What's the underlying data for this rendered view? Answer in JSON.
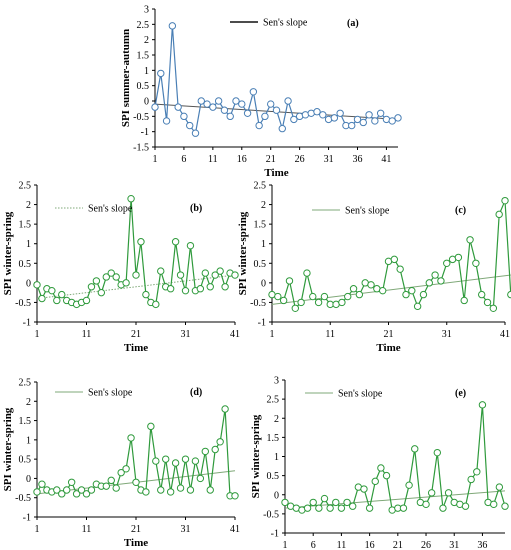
{
  "style": {
    "blue": "#4a7fb5",
    "green": "#2f9a3c",
    "trend_a": "#555555",
    "trend": "#7fa878",
    "axis": "#000000"
  },
  "chart_data": [
    {
      "id": "a",
      "type": "line",
      "panel_label": "(a)",
      "xlabel": "Time",
      "ylabel": "SPI summer-autumn",
      "legend": "Sen's slope",
      "legend_position": "top-center",
      "legend_line": "solid",
      "xlim": [
        1,
        43
      ],
      "ylim": [
        -1.5,
        3
      ],
      "xticks": [
        1,
        6,
        11,
        16,
        21,
        26,
        31,
        36,
        41
      ],
      "yticks": [
        -1.5,
        -1,
        -0.5,
        0,
        0.5,
        1,
        1.5,
        2,
        2.5,
        3
      ],
      "ytick_labels": [
        "-1.5",
        "-1",
        "-0.5",
        "0",
        "0.5",
        "1",
        "1.5",
        "2",
        "2.5",
        "3"
      ],
      "grid": false,
      "color_key": "blue",
      "series": [
        {
          "x": [
            1,
            2,
            3,
            4,
            5,
            6,
            7,
            8,
            9,
            10,
            11,
            12,
            13,
            14,
            15,
            16,
            17,
            18,
            19,
            20,
            21,
            22,
            23,
            24,
            25,
            26,
            27,
            28,
            29,
            30,
            31,
            32,
            33,
            34,
            35,
            36,
            37,
            38,
            39,
            40,
            41,
            42,
            43
          ],
          "values": [
            -0.2,
            0.9,
            -0.65,
            2.45,
            -0.2,
            -0.5,
            -0.8,
            -1.05,
            0.0,
            -0.1,
            -0.2,
            0.0,
            -0.3,
            -0.5,
            0.0,
            -0.1,
            -0.4,
            0.3,
            -0.8,
            -0.5,
            -0.1,
            -0.3,
            -0.9,
            0.0,
            -0.6,
            -0.5,
            -0.45,
            -0.4,
            -0.35,
            -0.45,
            -0.6,
            -0.55,
            -0.4,
            -0.8,
            -0.8,
            -0.6,
            -0.7,
            -0.45,
            -0.65,
            -0.4,
            -0.6,
            -0.65,
            -0.55
          ]
        }
      ],
      "trend": [
        [
          1,
          -0.1
        ],
        [
          43,
          -0.6
        ]
      ]
    },
    {
      "id": "b",
      "type": "line",
      "panel_label": "(b)",
      "xlabel": "Time",
      "ylabel": "SPI winter-spring",
      "legend": "Sen's slope",
      "legend_position": "top-left",
      "legend_line": "dotted",
      "xlim": [
        1,
        41
      ],
      "ylim": [
        -1,
        2.5
      ],
      "xticks": [
        1,
        11,
        21,
        31,
        41
      ],
      "yticks": [
        -1,
        -0.5,
        0,
        0.5,
        1,
        1.5,
        2,
        2.5
      ],
      "ytick_labels": [
        "-1",
        "-0.5",
        "0",
        "0.5",
        "1",
        "1.5",
        "2",
        "2.5"
      ],
      "grid": false,
      "color_key": "green",
      "series": [
        {
          "x": [
            1,
            2,
            3,
            4,
            5,
            6,
            7,
            8,
            9,
            10,
            11,
            12,
            13,
            14,
            15,
            16,
            17,
            18,
            19,
            20,
            21,
            22,
            23,
            24,
            25,
            26,
            27,
            28,
            29,
            30,
            31,
            32,
            33,
            34,
            35,
            36,
            37,
            38,
            39,
            40,
            41
          ],
          "values": [
            -0.05,
            -0.4,
            -0.15,
            -0.2,
            -0.45,
            -0.3,
            -0.45,
            -0.5,
            -0.55,
            -0.5,
            -0.45,
            -0.1,
            0.05,
            -0.25,
            0.15,
            0.25,
            0.15,
            -0.05,
            0.0,
            2.15,
            0.2,
            1.05,
            -0.3,
            -0.5,
            -0.55,
            0.3,
            -0.1,
            -0.15,
            1.05,
            0.2,
            -0.2,
            0.95,
            -0.2,
            -0.15,
            0.25,
            -0.1,
            0.2,
            0.3,
            -0.1,
            0.25,
            0.2
          ]
        }
      ],
      "trend": [
        [
          1,
          -0.4
        ],
        [
          41,
          0.2
        ]
      ]
    },
    {
      "id": "c",
      "type": "line",
      "panel_label": "(c)",
      "xlabel": "Time",
      "ylabel": "SPI winter-spring",
      "legend": "Sen's slope",
      "legend_position": "top-left",
      "legend_line": "solid",
      "xlim": [
        1,
        41
      ],
      "ylim": [
        -1,
        2.5
      ],
      "xticks": [
        1,
        11,
        21,
        31,
        41
      ],
      "yticks": [
        -1,
        -0.5,
        0,
        0.5,
        1,
        1.5,
        2,
        2.5
      ],
      "ytick_labels": [
        "-1",
        "-0.5",
        "0",
        "0.5",
        "1",
        "1.5",
        "2",
        "2.5"
      ],
      "grid": false,
      "color_key": "green",
      "series": [
        {
          "x": [
            1,
            2,
            3,
            4,
            5,
            6,
            7,
            8,
            9,
            10,
            11,
            12,
            13,
            14,
            15,
            16,
            17,
            18,
            19,
            20,
            21,
            22,
            23,
            24,
            25,
            26,
            27,
            28,
            29,
            30,
            31,
            32,
            33,
            34,
            35,
            36,
            37,
            38,
            39,
            40,
            41,
            42
          ],
          "values": [
            -0.3,
            -0.35,
            -0.45,
            0.05,
            -0.65,
            -0.5,
            0.25,
            -0.35,
            -0.5,
            -0.35,
            -0.55,
            -0.55,
            -0.5,
            -0.35,
            -0.15,
            -0.3,
            0.0,
            -0.05,
            -0.15,
            -0.2,
            0.55,
            0.6,
            0.35,
            -0.3,
            -0.2,
            -0.6,
            -0.3,
            0.0,
            0.2,
            0.05,
            0.5,
            0.6,
            0.65,
            -0.45,
            1.1,
            0.5,
            -0.3,
            -0.5,
            -0.65,
            1.75,
            2.1,
            -0.3
          ]
        }
      ],
      "trend": [
        [
          1,
          -0.55
        ],
        [
          42,
          0.2
        ]
      ]
    },
    {
      "id": "d",
      "type": "line",
      "panel_label": "(d)",
      "xlabel": "Time",
      "ylabel": "SPI winter-spring",
      "legend": "Sen's slope",
      "legend_position": "top-left",
      "legend_line": "solid",
      "xlim": [
        1,
        41
      ],
      "ylim": [
        -1,
        2.5
      ],
      "xticks": [
        1,
        11,
        21,
        31,
        41
      ],
      "yticks": [
        -1,
        -0.5,
        0,
        0.5,
        1,
        1.5,
        2,
        2.5
      ],
      "ytick_labels": [
        "-1",
        "-0.5",
        "0",
        "0.5",
        "1",
        "1.5",
        "2",
        "2.5"
      ],
      "grid": false,
      "color_key": "green",
      "series": [
        {
          "x": [
            1,
            2,
            3,
            4,
            5,
            6,
            7,
            8,
            9,
            10,
            11,
            12,
            13,
            14,
            15,
            16,
            17,
            18,
            19,
            20,
            21,
            22,
            23,
            24,
            25,
            26,
            27,
            28,
            29,
            30,
            31,
            32,
            33,
            34,
            35,
            36,
            37,
            38,
            39,
            40,
            41
          ],
          "values": [
            -0.35,
            -0.15,
            -0.3,
            -0.35,
            -0.3,
            -0.4,
            -0.3,
            -0.1,
            -0.4,
            -0.3,
            -0.4,
            -0.3,
            -0.15,
            -0.2,
            -0.2,
            -0.05,
            -0.25,
            0.15,
            0.25,
            1.05,
            -0.1,
            -0.3,
            -0.35,
            1.35,
            0.45,
            -0.3,
            0.5,
            -0.35,
            0.4,
            -0.25,
            0.5,
            -0.3,
            0.45,
            0.0,
            0.7,
            -0.3,
            0.75,
            0.95,
            1.8,
            -0.45,
            -0.45
          ]
        }
      ],
      "trend": [
        [
          1,
          -0.4
        ],
        [
          41,
          0.2
        ]
      ]
    },
    {
      "id": "e",
      "type": "line",
      "panel_label": "(e)",
      "xlabel": "Time",
      "ylabel": "SPI winter-spring",
      "legend": "Sen's slope",
      "legend_position": "top-left",
      "legend_line": "solid",
      "xlim": [
        1,
        40
      ],
      "ylim": [
        -1,
        3
      ],
      "xticks": [
        1,
        6,
        11,
        16,
        21,
        26,
        31,
        36
      ],
      "yticks": [
        -1,
        -0.5,
        0,
        0.5,
        1,
        1.5,
        2,
        2.5,
        3
      ],
      "ytick_labels": [
        "-1",
        "-0.5",
        "0",
        "0.5",
        "1",
        "1.5",
        "2",
        "2.5",
        "3"
      ],
      "grid": false,
      "color_key": "green",
      "series": [
        {
          "x": [
            1,
            2,
            3,
            4,
            5,
            6,
            7,
            8,
            9,
            10,
            11,
            12,
            13,
            14,
            15,
            16,
            17,
            18,
            19,
            20,
            21,
            22,
            23,
            24,
            25,
            26,
            27,
            28,
            29,
            30,
            31,
            32,
            33,
            34,
            35,
            36,
            37,
            38,
            39,
            40
          ],
          "values": [
            -0.2,
            -0.3,
            -0.35,
            -0.4,
            -0.35,
            -0.2,
            -0.35,
            -0.1,
            -0.35,
            -0.2,
            -0.35,
            -0.2,
            -0.3,
            0.2,
            0.15,
            -0.35,
            0.35,
            0.7,
            0.5,
            -0.4,
            -0.35,
            -0.35,
            0.25,
            1.2,
            -0.2,
            -0.25,
            0.05,
            1.1,
            -0.35,
            0.05,
            -0.2,
            -0.25,
            -0.3,
            0.4,
            0.6,
            2.35,
            -0.2,
            -0.25,
            0.2,
            -0.3
          ]
        }
      ],
      "trend": [
        [
          1,
          -0.35
        ],
        [
          40,
          0.1
        ]
      ]
    }
  ]
}
